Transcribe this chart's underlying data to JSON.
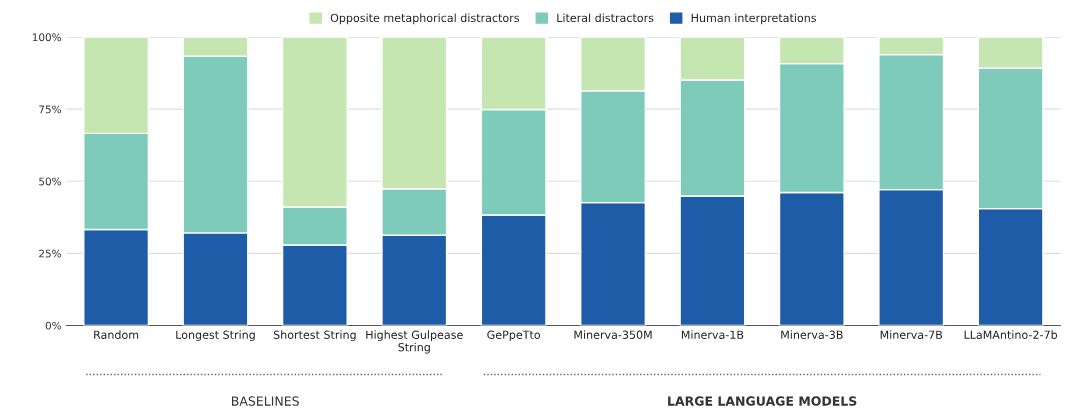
{
  "chart_data": {
    "type": "bar",
    "stacked": true,
    "categories": [
      "Random",
      "Longest String",
      "Shortest String",
      "Highest Gulpease\nString",
      "GePpeTto",
      "Minerva-350M",
      "Minerva-1B",
      "Minerva-3B",
      "Minerva-7B",
      "LLaMAntino-2-7b"
    ],
    "series": [
      {
        "name": "Human interpretations",
        "color": "#1f5ca8",
        "values": [
          33.3,
          32.1,
          27.9,
          31.3,
          38.3,
          42.6,
          44.9,
          46.1,
          47.1,
          40.5
        ]
      },
      {
        "name": "Literal distractors",
        "color": "#7fcbbb",
        "values": [
          33.3,
          61.3,
          13.2,
          16.1,
          36.6,
          38.8,
          40.2,
          44.7,
          46.8,
          48.7
        ]
      },
      {
        "name": "Opposite metaphorical distractors",
        "color": "#c5e6b0",
        "values": [
          33.4,
          6.6,
          58.9,
          52.6,
          25.1,
          18.6,
          14.9,
          9.2,
          6.1,
          10.8
        ]
      }
    ],
    "ylim": [
      0,
      100
    ],
    "yticks": [
      {
        "value": 0,
        "label": "0%"
      },
      {
        "value": 25,
        "label": "25%"
      },
      {
        "value": 50,
        "label": "50%"
      },
      {
        "value": 75,
        "label": "75%"
      },
      {
        "value": 100,
        "label": "100%"
      }
    ],
    "grid": "y",
    "legend": "top",
    "annotations": [
      "BASELINES",
      "LARGE LANGUAGE MODELS"
    ]
  }
}
